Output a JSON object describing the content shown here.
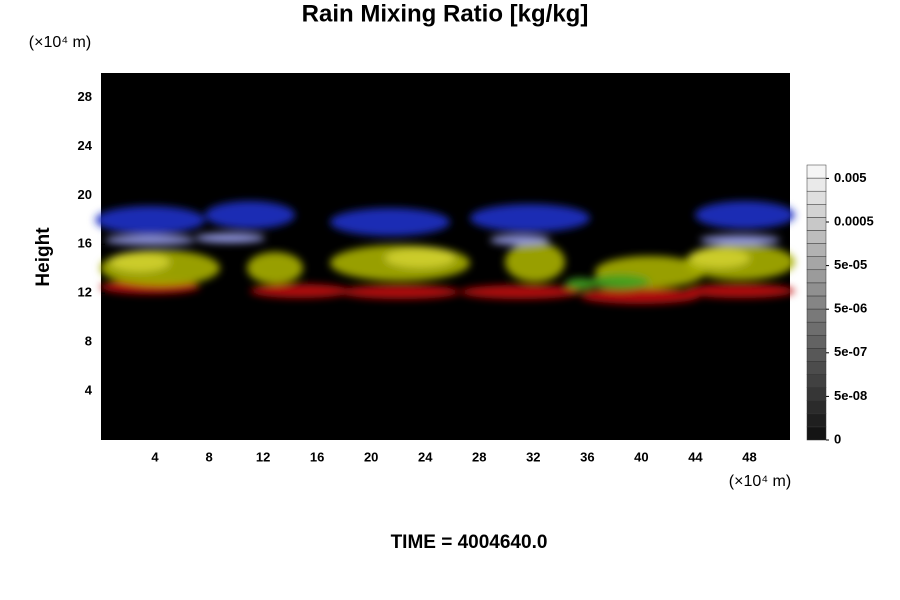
{
  "chart_data": {
    "type": "volume-render",
    "title": "Rain Mixing Ratio [kg/kg]",
    "y_label": "Height",
    "x_unit": "(×10⁴ m)",
    "y_unit": "(×10⁴ m)",
    "time_label": "TIME = 4004640.0",
    "xlim": [
      0,
      51
    ],
    "xticks": [
      4,
      8,
      12,
      16,
      20,
      24,
      28,
      32,
      36,
      40,
      44,
      48
    ],
    "ylim": [
      0,
      30
    ],
    "yticks": [
      4,
      8,
      12,
      16,
      20,
      24,
      28
    ],
    "colorbar_ticks": [
      0,
      {
        "value": 5e-08,
        "label": "5e-08"
      },
      {
        "value": 5e-07,
        "label": "5e-07"
      },
      {
        "value": 5e-06,
        "label": "5e-06"
      },
      {
        "value": 5e-05,
        "label": "5e-05"
      },
      0.0005,
      0.005
    ]
  }
}
